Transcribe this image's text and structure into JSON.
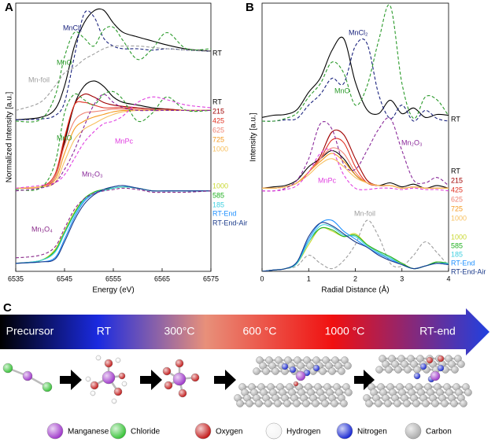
{
  "chart_data": [
    {
      "type": "line",
      "label": "A",
      "xlabel": "Energy (eV)",
      "ylabel": "Normalized Intensity [a.u.]",
      "xlim": [
        6535,
        6575
      ],
      "xticks": [
        6535,
        6545,
        6555,
        6565,
        6575
      ],
      "ylim": [
        0,
        10
      ],
      "x": [
        6535,
        6540,
        6543,
        6545,
        6547,
        6549,
        6551,
        6553,
        6555,
        6557,
        6560,
        6563,
        6566,
        6570,
        6575
      ],
      "series": [
        {
          "name": "RT",
          "color": "#000000",
          "values": [
            5.65,
            5.74,
            6.03,
            6.91,
            8.38,
            9.26,
            9.71,
            9.74,
            9.26,
            8.91,
            8.74,
            8.59,
            8.44,
            8.29,
            8.21
          ]
        },
        {
          "name": "MnCl₂",
          "color": "#1a237e",
          "dashed": true,
          "values": [
            5.65,
            5.68,
            5.8,
            6.3,
            8.0,
            9.6,
            9.5,
            8.7,
            8.4,
            8.3,
            8.3,
            8.25,
            8.3,
            8.25,
            8.2
          ]
        },
        {
          "name": "MnO",
          "color": "#2a9a2a",
          "dashed": true,
          "values": [
            5.6,
            5.65,
            6.5,
            8.0,
            8.9,
            8.7,
            8.4,
            9.0,
            9.1,
            8.6,
            7.9,
            8.3,
            8.9,
            8.3,
            8.3
          ]
        },
        {
          "name": "Mn-foil",
          "color": "#9e9e9e",
          "dashed": true,
          "values": [
            6.0,
            6.3,
            6.9,
            7.4,
            7.6,
            7.9,
            8.1,
            8.3,
            8.4,
            8.4,
            8.4,
            8.35,
            8.3,
            8.25,
            8.2
          ]
        },
        {
          "name": "RT",
          "color": "#000000",
          "values": [
            3.1,
            3.15,
            3.5,
            4.8,
            6.2,
            6.9,
            7.1,
            6.9,
            6.5,
            6.3,
            6.2,
            6.1,
            6.05,
            6.0,
            6.0
          ]
        },
        {
          "name": "215",
          "color": "#a00000",
          "values": [
            3.1,
            3.15,
            3.5,
            4.9,
            6.2,
            6.6,
            6.5,
            6.3,
            6.2,
            6.15,
            6.1,
            6.05,
            6.05,
            6.0,
            6.0
          ]
        },
        {
          "name": "425",
          "color": "#e03020",
          "values": [
            3.1,
            3.15,
            3.6,
            5.0,
            6.2,
            6.3,
            6.2,
            6.1,
            6.1,
            6.1,
            6.05,
            6.0,
            6.0,
            6.0,
            6.0
          ]
        },
        {
          "name": "625",
          "color": "#f08070",
          "values": [
            3.1,
            3.15,
            3.5,
            4.7,
            5.6,
            5.9,
            5.95,
            6.0,
            6.05,
            6.05,
            6.05,
            6.0,
            6.0,
            6.0,
            6.0
          ]
        },
        {
          "name": "725",
          "color": "#f59a20",
          "values": [
            3.1,
            3.15,
            3.4,
            4.4,
            5.3,
            5.6,
            5.75,
            5.85,
            5.95,
            6.0,
            6.0,
            6.0,
            6.0,
            6.0,
            6.0
          ]
        },
        {
          "name": "1000",
          "color": "#f7c060",
          "values": [
            3.1,
            3.15,
            3.3,
            4.1,
            4.9,
            5.3,
            5.5,
            5.7,
            5.85,
            5.95,
            6.0,
            6.0,
            6.0,
            6.0,
            6.0
          ]
        },
        {
          "name": "MnO",
          "color": "#2a9a2a",
          "dashed": true,
          "values": [
            3.05,
            3.1,
            4.0,
            5.9,
            6.6,
            6.4,
            6.2,
            6.6,
            6.7,
            6.4,
            5.6,
            5.9,
            6.5,
            6.0,
            6.0
          ]
        },
        {
          "name": "MnPc",
          "color": "#e040e0",
          "dashed": true,
          "values": [
            3.1,
            3.2,
            3.3,
            3.6,
            4.2,
            4.8,
            5.2,
            5.5,
            5.6,
            5.8,
            6.3,
            6.5,
            6.4,
            6.2,
            6.1
          ]
        },
        {
          "name": "Mn₂O₃",
          "color": "#8a2a9a",
          "dashed": true,
          "values": [
            3.0,
            3.1,
            3.3,
            3.8,
            4.5,
            5.4,
            6.2,
            6.6,
            6.3,
            6.1,
            6.0,
            6.0,
            6.0,
            6.0,
            6.0
          ]
        },
        {
          "name": "1000",
          "color": "#c8d830",
          "values": [
            0.3,
            0.4,
            0.8,
            1.5,
            2.2,
            2.7,
            2.95,
            3.05,
            3.1,
            3.15,
            3.1,
            3.0,
            3.0,
            3.0,
            3.0
          ]
        },
        {
          "name": "585",
          "color": "#20b020",
          "values": [
            0.3,
            0.4,
            0.75,
            1.45,
            2.15,
            2.7,
            2.95,
            3.05,
            3.1,
            3.15,
            3.1,
            3.0,
            3.0,
            3.0,
            3.0
          ]
        },
        {
          "name": "185",
          "color": "#40d0e0",
          "values": [
            0.3,
            0.4,
            0.7,
            1.4,
            2.1,
            2.65,
            2.9,
            3.0,
            3.1,
            3.15,
            3.1,
            3.0,
            3.0,
            3.0,
            3.0
          ]
        },
        {
          "name": "RT-End",
          "color": "#1e90ff",
          "values": [
            0.3,
            0.35,
            0.5,
            1.2,
            2.0,
            2.6,
            2.9,
            3.05,
            3.15,
            3.2,
            3.1,
            3.0,
            3.0,
            3.0,
            3.0
          ]
        },
        {
          "name": "RT-End-Air",
          "color": "#1a3a8a",
          "values": [
            0.3,
            0.35,
            0.45,
            1.1,
            1.9,
            2.5,
            2.85,
            3.05,
            3.15,
            3.2,
            3.1,
            3.0,
            3.0,
            3.0,
            3.0
          ]
        },
        {
          "name": "Mn₃O₄",
          "color": "#8a2a8a",
          "dashed": true,
          "values": [
            0.5,
            0.6,
            0.9,
            1.6,
            2.3,
            2.7,
            2.9,
            3.0,
            3.05,
            3.1,
            3.05,
            2.95,
            2.95,
            2.95,
            3.0
          ]
        }
      ]
    },
    {
      "type": "line",
      "label": "B",
      "xlabel": "Radial Distance (Å)",
      "ylabel": "Intensity [a.u.]",
      "xlim": [
        0,
        4
      ],
      "xticks": [
        0,
        1,
        2,
        3,
        4
      ],
      "ylim": [
        0,
        10
      ],
      "x": [
        0,
        0.25,
        0.5,
        0.75,
        1,
        1.25,
        1.5,
        1.75,
        2,
        2.25,
        2.5,
        2.75,
        3,
        3.25,
        3.5,
        3.75,
        4
      ],
      "series": [
        {
          "name": "RT",
          "color": "#000000",
          "values": [
            5.74,
            5.82,
            5.85,
            6.03,
            6.68,
            7.21,
            8.24,
            8.68,
            7.06,
            6.03,
            5.88,
            6.38,
            5.88,
            6.09,
            5.74,
            5.85,
            5.82
          ]
        },
        {
          "name": "MnCl₂",
          "color": "#1a237e",
          "dashed": true,
          "values": [
            5.6,
            5.6,
            5.65,
            5.7,
            6.2,
            6.6,
            7.2,
            7.0,
            8.4,
            8.5,
            6.6,
            5.7,
            6.2,
            5.6,
            6.0,
            5.7,
            5.6
          ]
        },
        {
          "name": "MnO",
          "color": "#2a9a2a",
          "dashed": true,
          "values": [
            5.6,
            5.6,
            5.7,
            5.9,
            6.5,
            7.0,
            7.8,
            7.4,
            6.2,
            6.9,
            8.6,
            9.9,
            7.0,
            5.7,
            6.5,
            6.4,
            5.8
          ]
        },
        {
          "name": "RT",
          "color": "#000000",
          "values": [
            3.1,
            3.15,
            3.2,
            3.4,
            3.9,
            4.2,
            4.5,
            4.2,
            3.6,
            3.3,
            3.2,
            3.3,
            3.15,
            3.25,
            3.1,
            3.2,
            3.1
          ]
        },
        {
          "name": "215",
          "color": "#a00000",
          "values": [
            3.1,
            3.1,
            3.15,
            3.3,
            3.7,
            4.3,
            5.2,
            5.1,
            4.2,
            3.4,
            3.2,
            3.2,
            3.1,
            3.15,
            3.1,
            3.1,
            3.1
          ]
        },
        {
          "name": "425",
          "color": "#e03020",
          "values": [
            3.1,
            3.1,
            3.15,
            3.3,
            3.7,
            4.2,
            4.9,
            4.8,
            3.9,
            3.3,
            3.2,
            3.2,
            3.1,
            3.15,
            3.1,
            3.1,
            3.1
          ]
        },
        {
          "name": "625",
          "color": "#f08070",
          "values": [
            3.1,
            3.1,
            3.15,
            3.3,
            3.7,
            4.2,
            4.6,
            4.4,
            3.7,
            3.3,
            3.2,
            3.2,
            3.1,
            3.15,
            3.1,
            3.1,
            3.1
          ]
        },
        {
          "name": "725",
          "color": "#f59a20",
          "values": [
            3.1,
            3.1,
            3.15,
            3.3,
            3.7,
            4.1,
            4.4,
            4.1,
            3.6,
            3.3,
            3.2,
            3.2,
            3.1,
            3.15,
            3.1,
            3.1,
            3.1
          ]
        },
        {
          "name": "1000",
          "color": "#f7c060",
          "values": [
            3.1,
            3.1,
            3.15,
            3.3,
            3.6,
            4.0,
            4.2,
            3.9,
            3.5,
            3.3,
            3.2,
            3.2,
            3.1,
            3.15,
            3.1,
            3.1,
            3.1
          ]
        },
        {
          "name": "Mn₂O₃",
          "color": "#8a2a9a",
          "dashed": true,
          "values": [
            3.0,
            3.0,
            3.1,
            3.4,
            4.2,
            5.5,
            5.3,
            4.0,
            3.8,
            4.5,
            5.3,
            5.7,
            4.5,
            3.4,
            3.3,
            3.5,
            3.2
          ]
        },
        {
          "name": "MnPc",
          "color": "#e040e0",
          "dashed": true,
          "values": [
            3.0,
            3.0,
            3.05,
            3.2,
            3.7,
            4.4,
            4.5,
            3.6,
            3.1,
            3.05,
            3.1,
            3.1,
            3.05,
            3.1,
            3.05,
            3.05,
            3.0
          ]
        },
        {
          "name": "Mn-foil",
          "color": "#9e9e9e",
          "dashed": true,
          "values": [
            0.0,
            0.05,
            0.1,
            0.2,
            0.6,
            0.3,
            0.1,
            0.4,
            1.0,
            1.9,
            1.3,
            0.3,
            0.2,
            0.6,
            1.1,
            0.7,
            0.2
          ]
        },
        {
          "name": "1000",
          "color": "#c8d830",
          "values": [
            0.0,
            0.05,
            0.1,
            0.3,
            1.0,
            1.6,
            1.5,
            1.3,
            1.4,
            1.0,
            0.7,
            0.5,
            0.3,
            0.1,
            0.2,
            0.35,
            0.3
          ]
        },
        {
          "name": "585",
          "color": "#20b020",
          "values": [
            0.0,
            0.05,
            0.1,
            0.3,
            1.1,
            1.6,
            1.55,
            1.3,
            1.35,
            1.0,
            0.75,
            0.55,
            0.3,
            0.1,
            0.2,
            0.35,
            0.3
          ]
        },
        {
          "name": "185",
          "color": "#40d0e0",
          "values": [
            0.0,
            0.05,
            0.1,
            0.3,
            1.1,
            1.7,
            1.65,
            1.35,
            1.3,
            0.95,
            0.7,
            0.5,
            0.25,
            0.1,
            0.2,
            0.3,
            0.3
          ]
        },
        {
          "name": "RT-End",
          "color": "#1e90ff",
          "values": [
            0.0,
            0.05,
            0.1,
            0.35,
            1.2,
            1.8,
            1.9,
            1.5,
            1.2,
            0.9,
            0.65,
            0.45,
            0.25,
            0.1,
            0.2,
            0.3,
            0.25
          ]
        },
        {
          "name": "RT-End-Air",
          "color": "#1a3a8a",
          "values": [
            0.0,
            0.05,
            0.1,
            0.35,
            1.3,
            1.8,
            1.7,
            1.4,
            1.1,
            0.9,
            0.6,
            0.4,
            0.25,
            0.1,
            0.2,
            0.3,
            0.25
          ]
        }
      ]
    }
  ],
  "diagram": {
    "label": "C",
    "stages": [
      "Precursor",
      "RT",
      "300°C",
      "600 °C",
      "1000 °C",
      "RT-end"
    ],
    "atoms": [
      {
        "label": "Manganese",
        "color": "#9b30c8"
      },
      {
        "label": "Chloride",
        "color": "#30c030"
      },
      {
        "label": "Oxygen",
        "color": "#c01010"
      },
      {
        "label": "Hydrogen",
        "color": "#f4f4f4"
      },
      {
        "label": "Nitrogen",
        "color": "#1020d0"
      },
      {
        "label": "Carbon",
        "color": "#a8a8a8"
      }
    ]
  }
}
